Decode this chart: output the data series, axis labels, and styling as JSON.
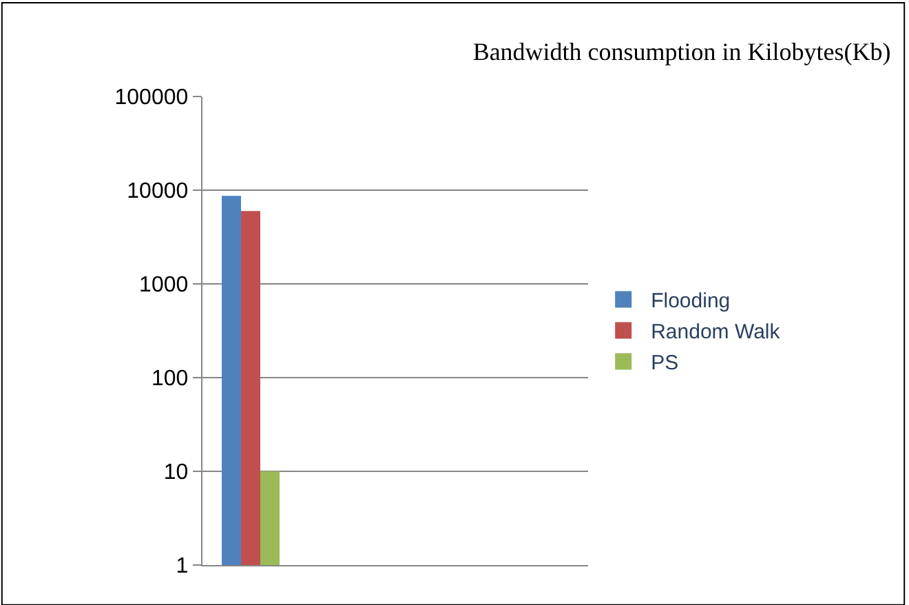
{
  "chart_data": {
    "type": "bar",
    "title": "Bandwidth consumption in Kilobytes(Kb)",
    "categories": [
      null,
      null,
      null,
      null
    ],
    "series": [
      {
        "name": "Flooding",
        "color": "#4f81bd",
        "values": [
          8700,
          null,
          null,
          null
        ]
      },
      {
        "name": "Random Walk",
        "color": "#c0504d",
        "values": [
          6000,
          null,
          null,
          null
        ]
      },
      {
        "name": "PS",
        "color": "#9bbb59",
        "values": [
          10,
          null,
          null,
          null
        ]
      }
    ],
    "log": true,
    "ylim": [
      1,
      100000
    ],
    "yticks": [
      1,
      10,
      100,
      1000,
      10000,
      100000
    ],
    "grid": "y",
    "legend": "right"
  }
}
